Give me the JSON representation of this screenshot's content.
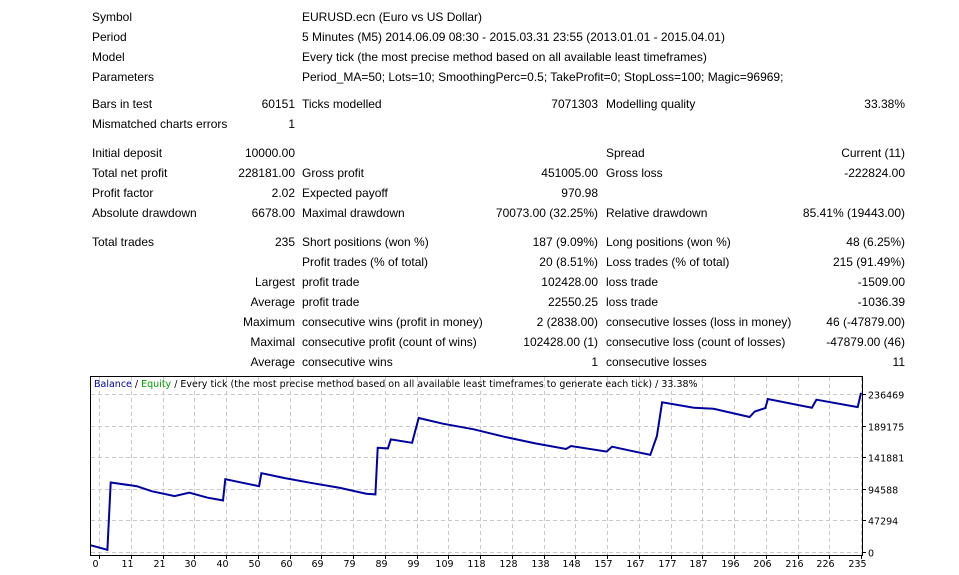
{
  "header": [
    {
      "label": "Symbol",
      "value": "EURUSD.ecn (Euro vs US Dollar)"
    },
    {
      "label": "Period",
      "value": "5 Minutes (M5) 2014.06.09 08:30 - 2015.03.31 23:55 (2013.01.01 - 2015.04.01)"
    },
    {
      "label": "Model",
      "value": "Every tick (the most precise method based on all available least timeframes)"
    },
    {
      "label": "Parameters",
      "value": "Period_MA=50; Lots=10; SmoothingPerc=0.5; TakeProfit=0; StopLoss=100; Magic=96969;"
    }
  ],
  "stats": [
    [
      "Bars in test",
      "60151",
      "Ticks modelled",
      "7071303",
      "Modelling quality",
      "33.38%"
    ],
    [
      "Mismatched charts errors",
      "1",
      "",
      "",
      "",
      ""
    ],
    [
      "Initial deposit",
      "10000.00",
      "",
      "",
      "Spread",
      "Current (11)"
    ],
    [
      "Total net profit",
      "228181.00",
      "Gross profit",
      "451005.00",
      "Gross loss",
      "-222824.00"
    ],
    [
      "Profit factor",
      "2.02",
      "Expected payoff",
      "970.98",
      "",
      ""
    ],
    [
      "Absolute drawdown",
      "6678.00",
      "Maximal drawdown",
      "70073.00 (32.25%)",
      "Relative drawdown",
      "85.41% (19443.00)"
    ],
    [
      "Total trades",
      "235",
      "Short positions (won %)",
      "187 (9.09%)",
      "Long positions (won %)",
      "48 (6.25%)"
    ],
    [
      "",
      "",
      "Profit trades (% of total)",
      "20 (8.51%)",
      "Loss trades (% of total)",
      "215 (91.49%)"
    ],
    [
      "",
      "Largest",
      "profit trade",
      "102428.00",
      "loss trade",
      "-1509.00"
    ],
    [
      "",
      "Average",
      "profit trade",
      "22550.25",
      "loss trade",
      "-1036.39"
    ],
    [
      "",
      "Maximum",
      "consecutive wins (profit in money)",
      "2 (2838.00)",
      "consecutive losses (loss in money)",
      "46 (-47879.00)"
    ],
    [
      "",
      "Maximal",
      "consecutive profit (count of wins)",
      "102428.00 (1)",
      "consecutive loss (count of losses)",
      "-47879.00 (46)"
    ],
    [
      "",
      "Average",
      "consecutive wins",
      "1",
      "consecutive losses",
      "11"
    ]
  ],
  "chart_data": {
    "type": "line",
    "legend": {
      "balance": "Balance",
      "sep1": " / ",
      "equity": "Equity",
      "rest": " / Every tick (the most precise method based on all available least timeframes to generate each tick) / 33.38%"
    },
    "colors": {
      "balance": "#0000a0",
      "equity": "#00a000",
      "grid": "#c8c8c8"
    },
    "x_ticks": [
      "0",
      "11",
      "21",
      "30",
      "40",
      "50",
      "60",
      "69",
      "79",
      "89",
      "99",
      "109",
      "118",
      "128",
      "138",
      "148",
      "157",
      "167",
      "177",
      "187",
      "196",
      "206",
      "216",
      "226",
      "235"
    ],
    "y_ticks": [
      "0",
      "47294",
      "94588",
      "141881",
      "189175",
      "236469"
    ],
    "ylim": [
      0,
      262000
    ],
    "xlim": [
      0,
      235
    ],
    "grid": true,
    "series": [
      {
        "name": "Balance",
        "points": [
          [
            0,
            10000
          ],
          [
            5,
            3322
          ],
          [
            6,
            104000
          ],
          [
            14,
            98500
          ],
          [
            18.5,
            91000
          ],
          [
            25.5,
            83700
          ],
          [
            30,
            88700
          ],
          [
            35.6,
            81300
          ],
          [
            40.3,
            77300
          ],
          [
            41,
            109000
          ],
          [
            51.3,
            98500
          ],
          [
            52,
            118000
          ],
          [
            59,
            110800
          ],
          [
            67,
            103500
          ],
          [
            76,
            96000
          ],
          [
            84,
            87200
          ],
          [
            86.8,
            86200
          ],
          [
            87.5,
            156000
          ],
          [
            90.6,
            155000
          ],
          [
            91.5,
            168500
          ],
          [
            98,
            163500
          ],
          [
            100,
            200500
          ],
          [
            107.4,
            192000
          ],
          [
            116.8,
            183700
          ],
          [
            126.2,
            172400
          ],
          [
            135.6,
            162600
          ],
          [
            145,
            154200
          ],
          [
            146.5,
            158600
          ],
          [
            157.4,
            150200
          ],
          [
            159,
            157600
          ],
          [
            170.7,
            145300
          ],
          [
            172.7,
            173400
          ],
          [
            174.3,
            224000
          ],
          [
            184,
            215900
          ],
          [
            190,
            214300
          ],
          [
            201,
            202000
          ],
          [
            202.6,
            210300
          ],
          [
            205.8,
            215300
          ],
          [
            206.6,
            229000
          ],
          [
            220,
            215900
          ],
          [
            221.4,
            228000
          ],
          [
            234,
            216800
          ],
          [
            235,
            238181
          ]
        ]
      }
    ]
  }
}
